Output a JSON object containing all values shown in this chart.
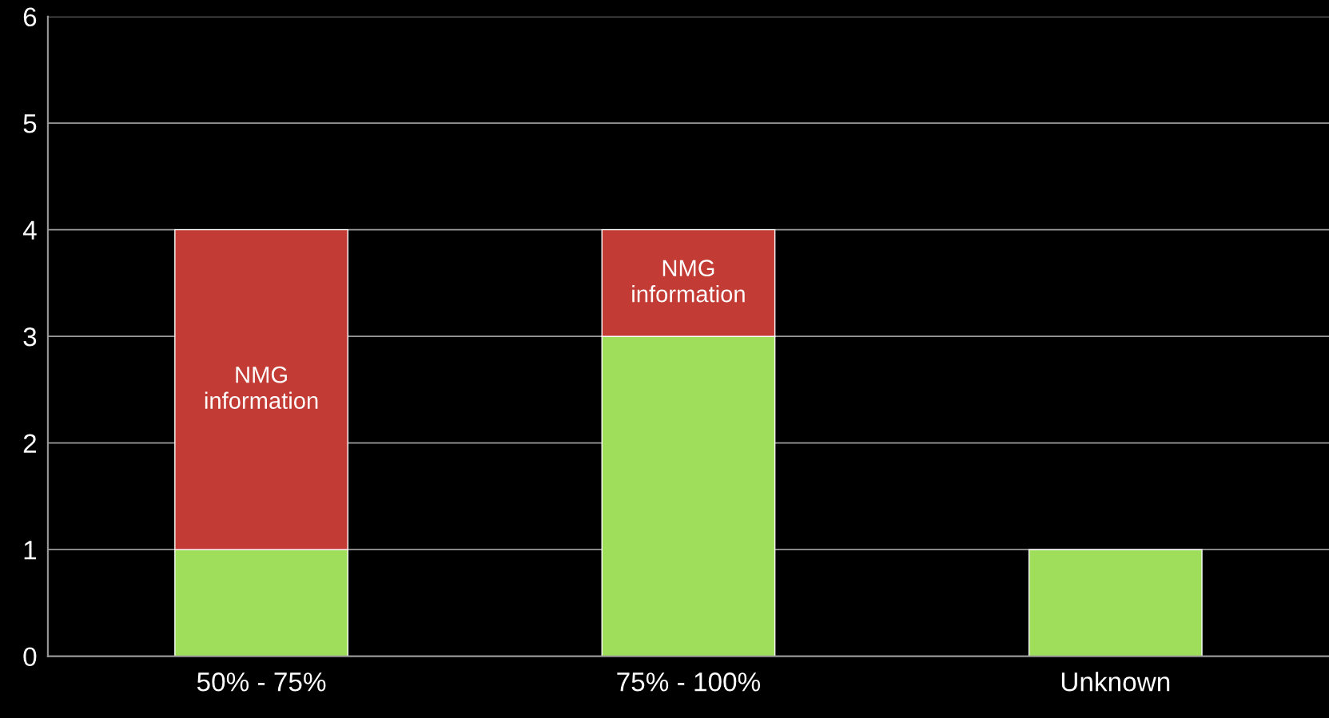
{
  "chart_data": {
    "type": "bar",
    "stacked": true,
    "categories": [
      "50% - 75%",
      "75% - 100%",
      "Unknown"
    ],
    "series": [
      {
        "color": "#9ede5a",
        "values": [
          1,
          3,
          1
        ]
      },
      {
        "name": "NMG information",
        "color": "#c23b34",
        "values": [
          3,
          1,
          null
        ]
      }
    ],
    "ylim": [
      0,
      6
    ],
    "yticks": [
      0,
      1,
      2,
      3,
      4,
      5,
      6
    ],
    "grid": "y"
  }
}
